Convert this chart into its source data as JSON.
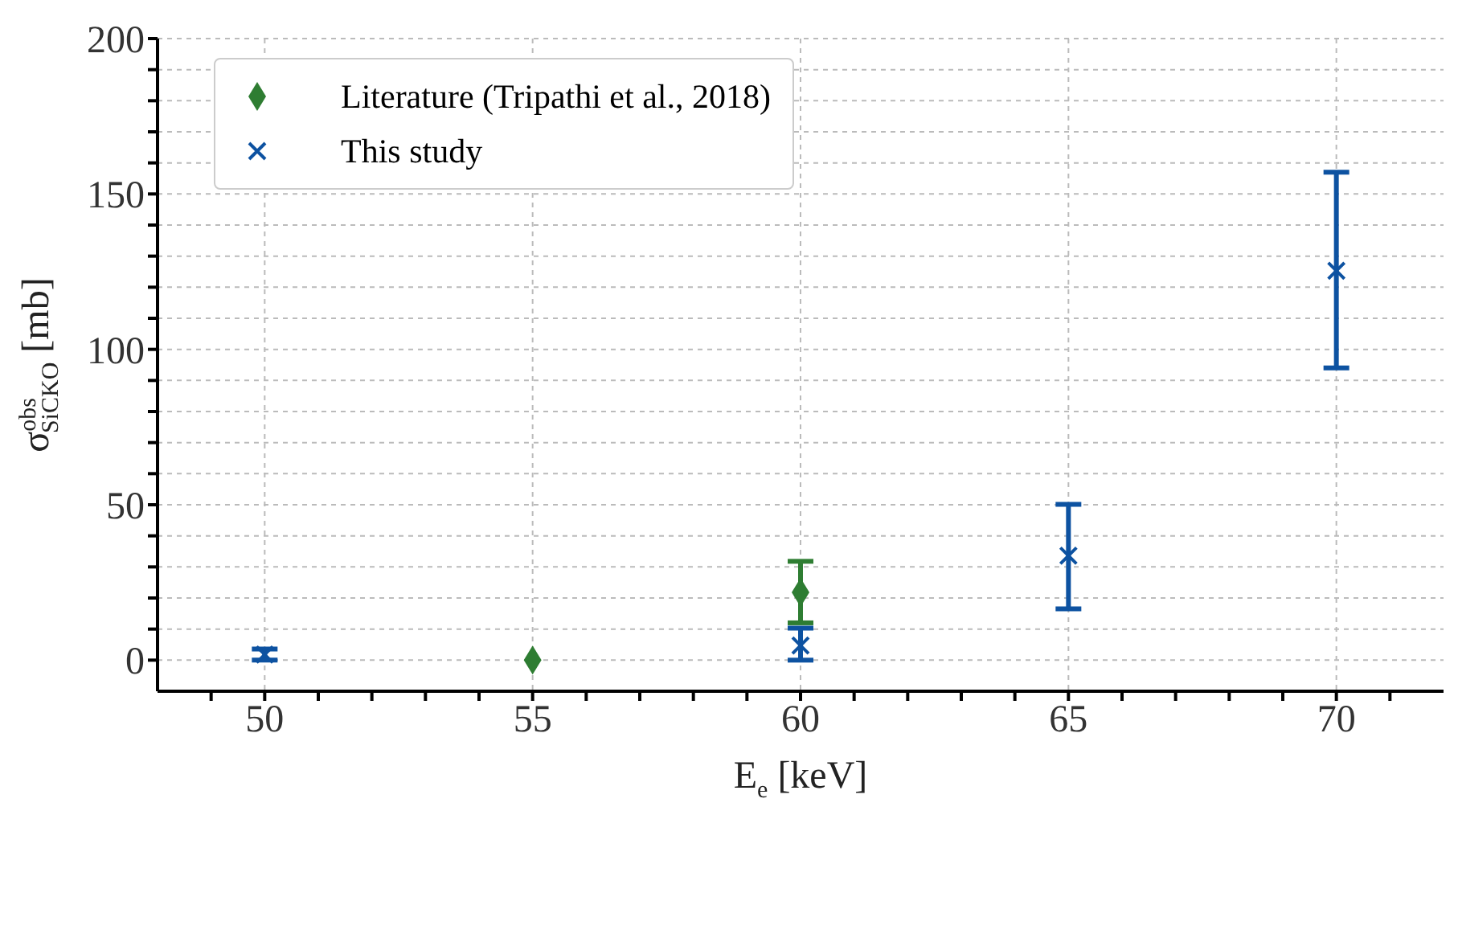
{
  "chart_data": {
    "type": "scatter",
    "xlabel": "E$_{e}$ [keV]",
    "ylabel": "σ$^{obs}$$_{SiCKO}$ [mb]",
    "xlim": [
      48,
      72
    ],
    "xticks": [
      {
        "value": 49,
        "label": null
      },
      50,
      {
        "value": 51,
        "label": null
      },
      {
        "value": 52,
        "label": null
      },
      {
        "value": 53,
        "label": null
      },
      {
        "value": 54,
        "label": null
      },
      55,
      {
        "value": 56,
        "label": null
      },
      {
        "value": 57,
        "label": null
      },
      {
        "value": 58,
        "label": null
      },
      {
        "value": 59,
        "label": null
      },
      60,
      {
        "value": 61,
        "label": null
      },
      {
        "value": 62,
        "label": null
      },
      {
        "value": 63,
        "label": null
      },
      {
        "value": 64,
        "label": null
      },
      65,
      {
        "value": 66,
        "label": null
      },
      {
        "value": 67,
        "label": null
      },
      {
        "value": 68,
        "label": null
      },
      {
        "value": 69,
        "label": null
      },
      70,
      {
        "value": 71,
        "label": null
      }
    ],
    "ylim": [
      -10,
      200
    ],
    "yticks": [
      0,
      {
        "value": 10,
        "label": null
      },
      {
        "value": 20,
        "label": null
      },
      {
        "value": 30,
        "label": null
      },
      {
        "value": 40,
        "label": null
      },
      50,
      {
        "value": 60,
        "label": null
      },
      {
        "value": 70,
        "label": null
      },
      {
        "value": 80,
        "label": null
      },
      {
        "value": 90,
        "label": null
      },
      100,
      {
        "value": 110,
        "label": null
      },
      {
        "value": 120,
        "label": null
      },
      {
        "value": 130,
        "label": null
      },
      {
        "value": 140,
        "label": null
      },
      150,
      {
        "value": 160,
        "label": null
      },
      {
        "value": 170,
        "label": null
      },
      {
        "value": 180,
        "label": null
      },
      {
        "value": 190,
        "label": null
      },
      200
    ],
    "grid": true,
    "legend": "top left",
    "series": [
      {
        "name": "Literature (Tripathi et al., 2018)",
        "color": "#2e7d32",
        "marker": "diamond",
        "x": [
          55,
          60
        ],
        "values": [
          0,
          21.8
        ],
        "errors": [
          null,
          [
            12,
            31.8
          ]
        ]
      },
      {
        "name": "This study",
        "color": "#0d52a1",
        "marker": "cross",
        "x": [
          50,
          60,
          65,
          70
        ],
        "values": [
          1.8,
          4.7,
          33.6,
          125.3
        ],
        "errors": [
          [
            0,
            3.6
          ],
          [
            0,
            10.3
          ],
          [
            16.5,
            50.1
          ],
          [
            94,
            157
          ]
        ]
      }
    ]
  }
}
